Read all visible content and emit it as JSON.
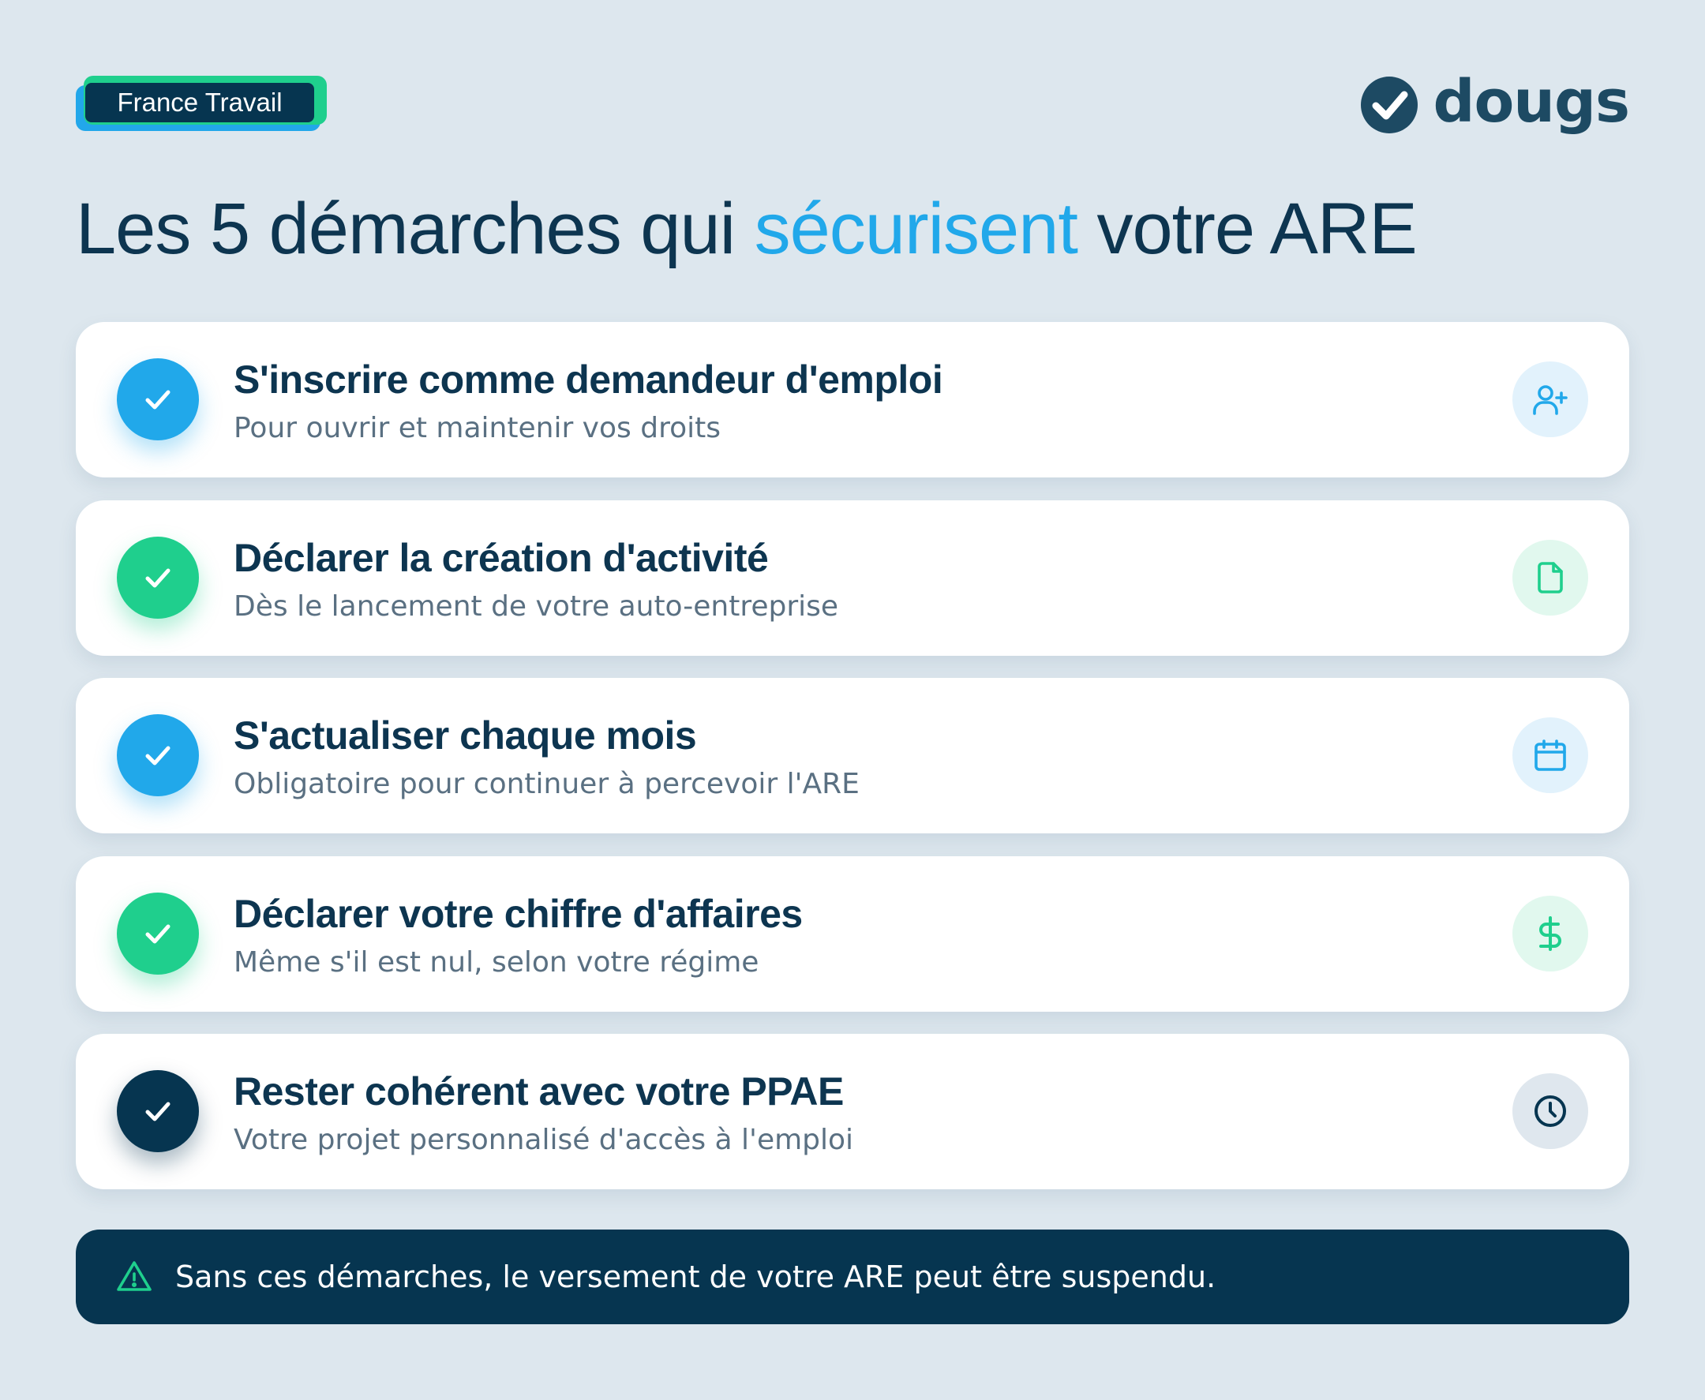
{
  "tag": {
    "label": "France Travail"
  },
  "brand": {
    "name": "dougs",
    "icon": "check-circle-logo"
  },
  "headline": {
    "prefix": "Les 5 démarches qui ",
    "accent": "sécurisent",
    "suffix": " votre ARE"
  },
  "colors": {
    "blue": "#21a8ea",
    "green": "#1fcf8d",
    "navy": "#063550",
    "text": "#0d3550",
    "background": "#dde7ee"
  },
  "steps": [
    {
      "title": "S'inscrire comme demandeur d'emploi",
      "subtitle": "Pour ouvrir et maintenir vos droits",
      "check_color": "blue",
      "icon": "user-plus-icon"
    },
    {
      "title": "Déclarer la création d'activité",
      "subtitle": "Dès le lancement de votre auto-entreprise",
      "check_color": "green",
      "icon": "document-icon"
    },
    {
      "title": "S'actualiser chaque mois",
      "subtitle": "Obligatoire pour continuer à percevoir l'ARE",
      "check_color": "blue",
      "icon": "calendar-icon"
    },
    {
      "title": "Déclarer votre chiffre d'affaires",
      "subtitle": "Même s'il est nul, selon votre régime",
      "check_color": "green",
      "icon": "dollar-icon"
    },
    {
      "title": "Rester cohérent avec votre PPAE",
      "subtitle": "Votre projet personnalisé d'accès à l'emploi",
      "check_color": "navy",
      "icon": "clock-icon"
    }
  ],
  "alert": {
    "icon": "warning-icon",
    "text": "Sans ces démarches, le versement de votre ARE peut être suspendu."
  }
}
